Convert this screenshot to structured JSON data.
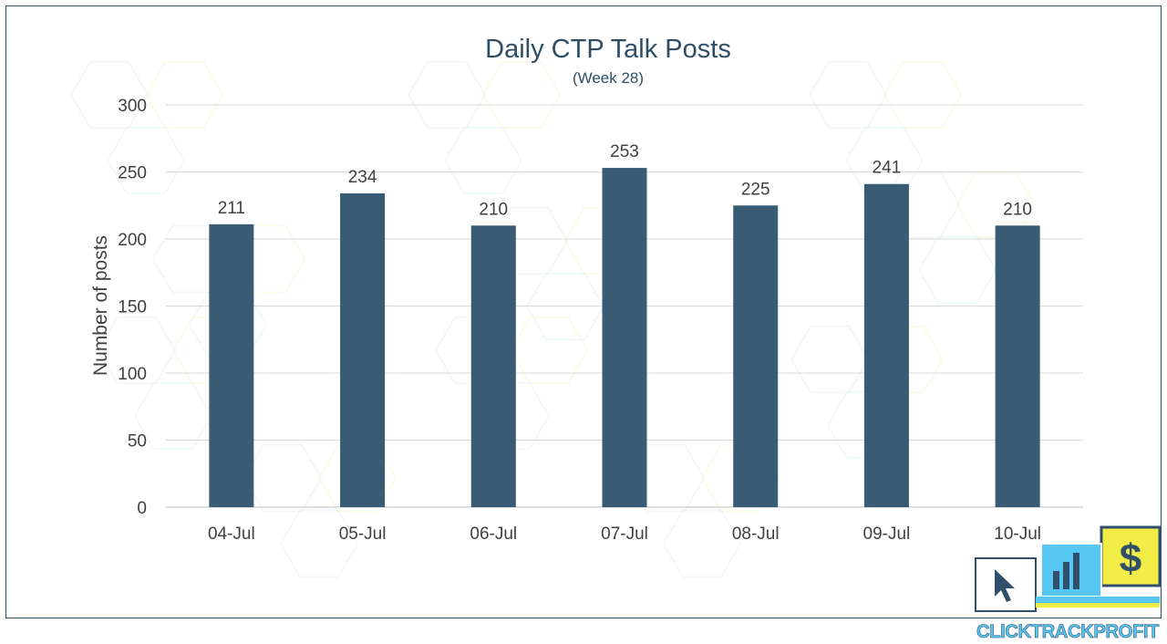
{
  "chart_data": {
    "type": "bar",
    "title": "Daily CTP Talk Posts",
    "subtitle": "(Week 28)",
    "xlabel": "",
    "ylabel": "Number of posts",
    "categories": [
      "04-Jul",
      "05-Jul",
      "06-Jul",
      "07-Jul",
      "08-Jul",
      "09-Jul",
      "10-Jul"
    ],
    "values": [
      211,
      234,
      210,
      253,
      225,
      241,
      210
    ],
    "ylim": [
      0,
      300
    ],
    "yticks": [
      0,
      50,
      100,
      150,
      200,
      250,
      300
    ],
    "data_labels": true,
    "grid": true,
    "legend": "none",
    "bar_color": "#3a5b74"
  },
  "logo": {
    "text": "CLICKTRACKPROFIT",
    "icons": [
      "cursor-icon",
      "bar-chart-icon",
      "dollar-icon"
    ]
  },
  "colors": {
    "frame": "#2f4f6a",
    "title": "#2e4d66",
    "text": "#404040",
    "grid": "#d9d9d9",
    "logo_blue": "#56c7f3",
    "logo_yellow": "#f2ec46"
  }
}
